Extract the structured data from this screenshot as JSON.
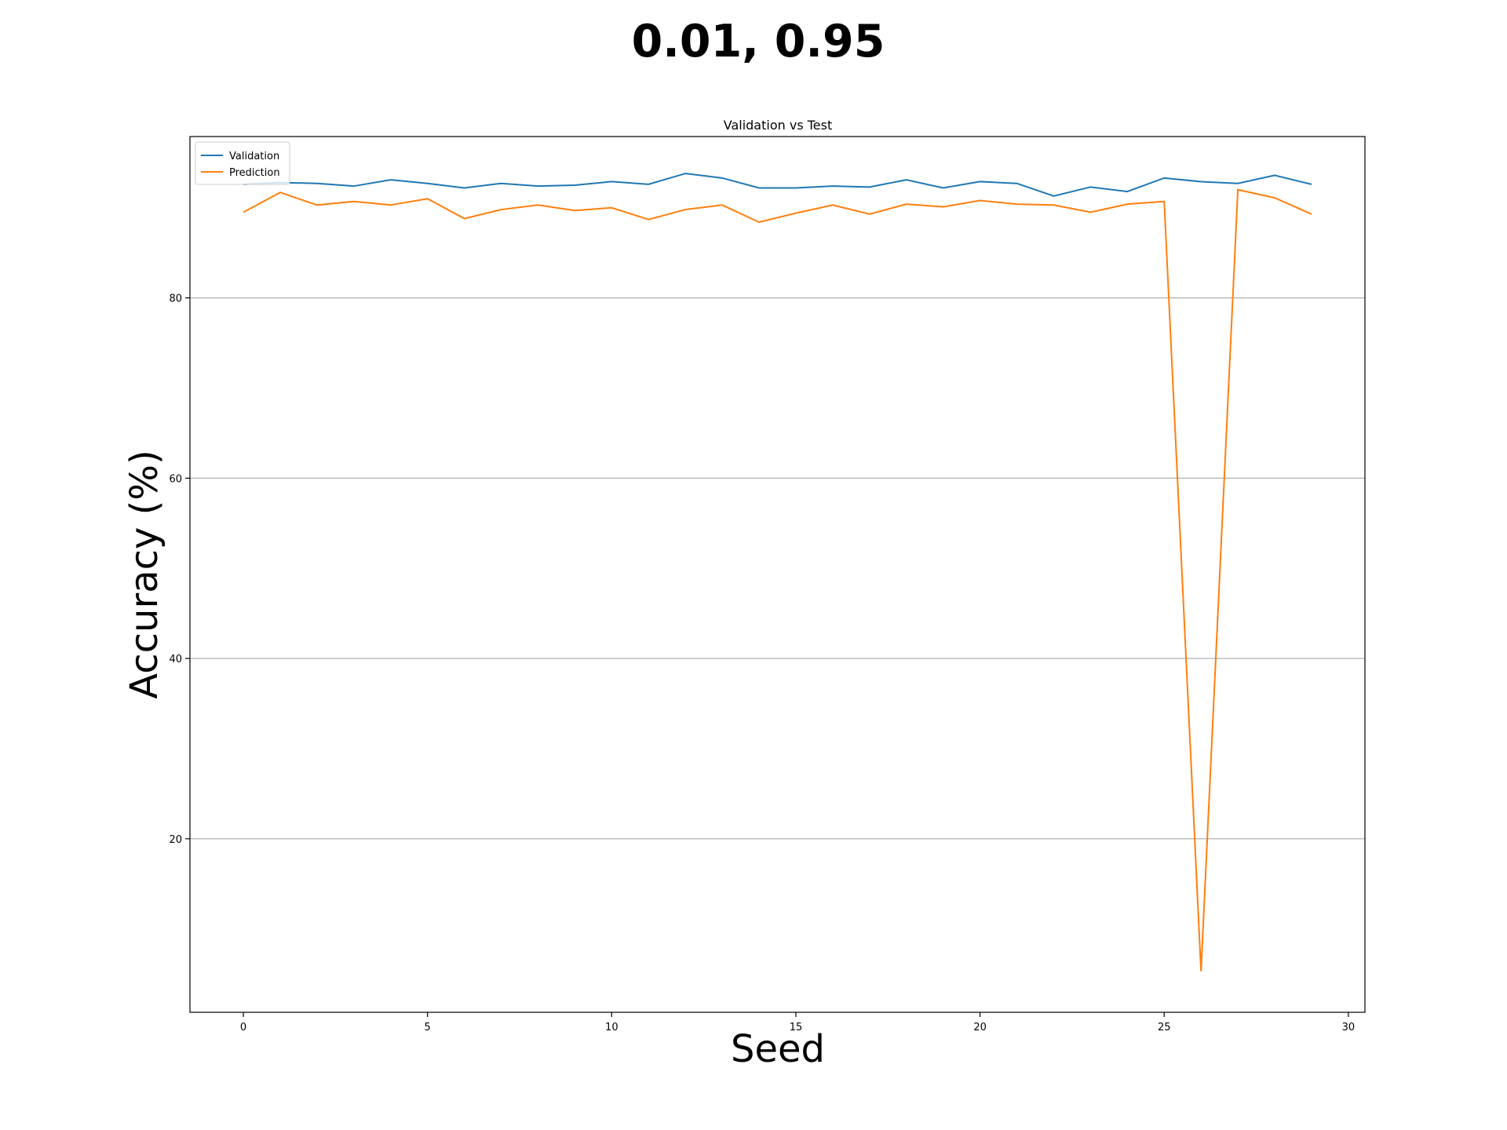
{
  "figure": {
    "suptitle": "0.01, 0.95"
  },
  "chart_data": {
    "type": "line",
    "title": "Validation vs Test",
    "xlabel": "Seed",
    "ylabel": "Accuracy (%)",
    "xlim": [
      -1.45,
      30.45
    ],
    "ylim": [
      0.75,
      97.9
    ],
    "xticks": [
      0,
      5,
      10,
      15,
      20,
      25,
      30
    ],
    "yticks": [
      20,
      40,
      60,
      80
    ],
    "grid": "y-major",
    "legend_position": "upper left",
    "x": [
      0,
      1,
      2,
      3,
      4,
      5,
      6,
      7,
      8,
      9,
      10,
      11,
      12,
      13,
      14,
      15,
      16,
      17,
      18,
      19,
      20,
      21,
      22,
      23,
      24,
      25,
      26,
      27,
      28,
      29
    ],
    "series": [
      {
        "name": "Validation",
        "color": "#1f77b4",
        "values": [
          92.6,
          92.8,
          92.7,
          92.4,
          93.1,
          92.7,
          92.2,
          92.7,
          92.4,
          92.5,
          92.9,
          92.6,
          93.8,
          93.3,
          92.2,
          92.2,
          92.4,
          92.3,
          93.1,
          92.2,
          92.9,
          92.7,
          91.3,
          92.3,
          91.8,
          93.3,
          92.9,
          92.7,
          93.6,
          92.6
        ],
        "style": "solid"
      },
      {
        "name": "Prediction",
        "color": "#ff7f0e",
        "values": [
          89.5,
          91.7,
          90.3,
          90.7,
          90.3,
          91.0,
          88.8,
          89.8,
          90.3,
          89.7,
          90.0,
          88.7,
          89.8,
          90.3,
          88.4,
          89.4,
          90.3,
          89.3,
          90.4,
          90.1,
          90.8,
          90.4,
          90.3,
          89.5,
          90.4,
          90.7,
          5.3,
          92.0,
          91.1,
          89.3
        ],
        "style": "solid"
      }
    ]
  }
}
